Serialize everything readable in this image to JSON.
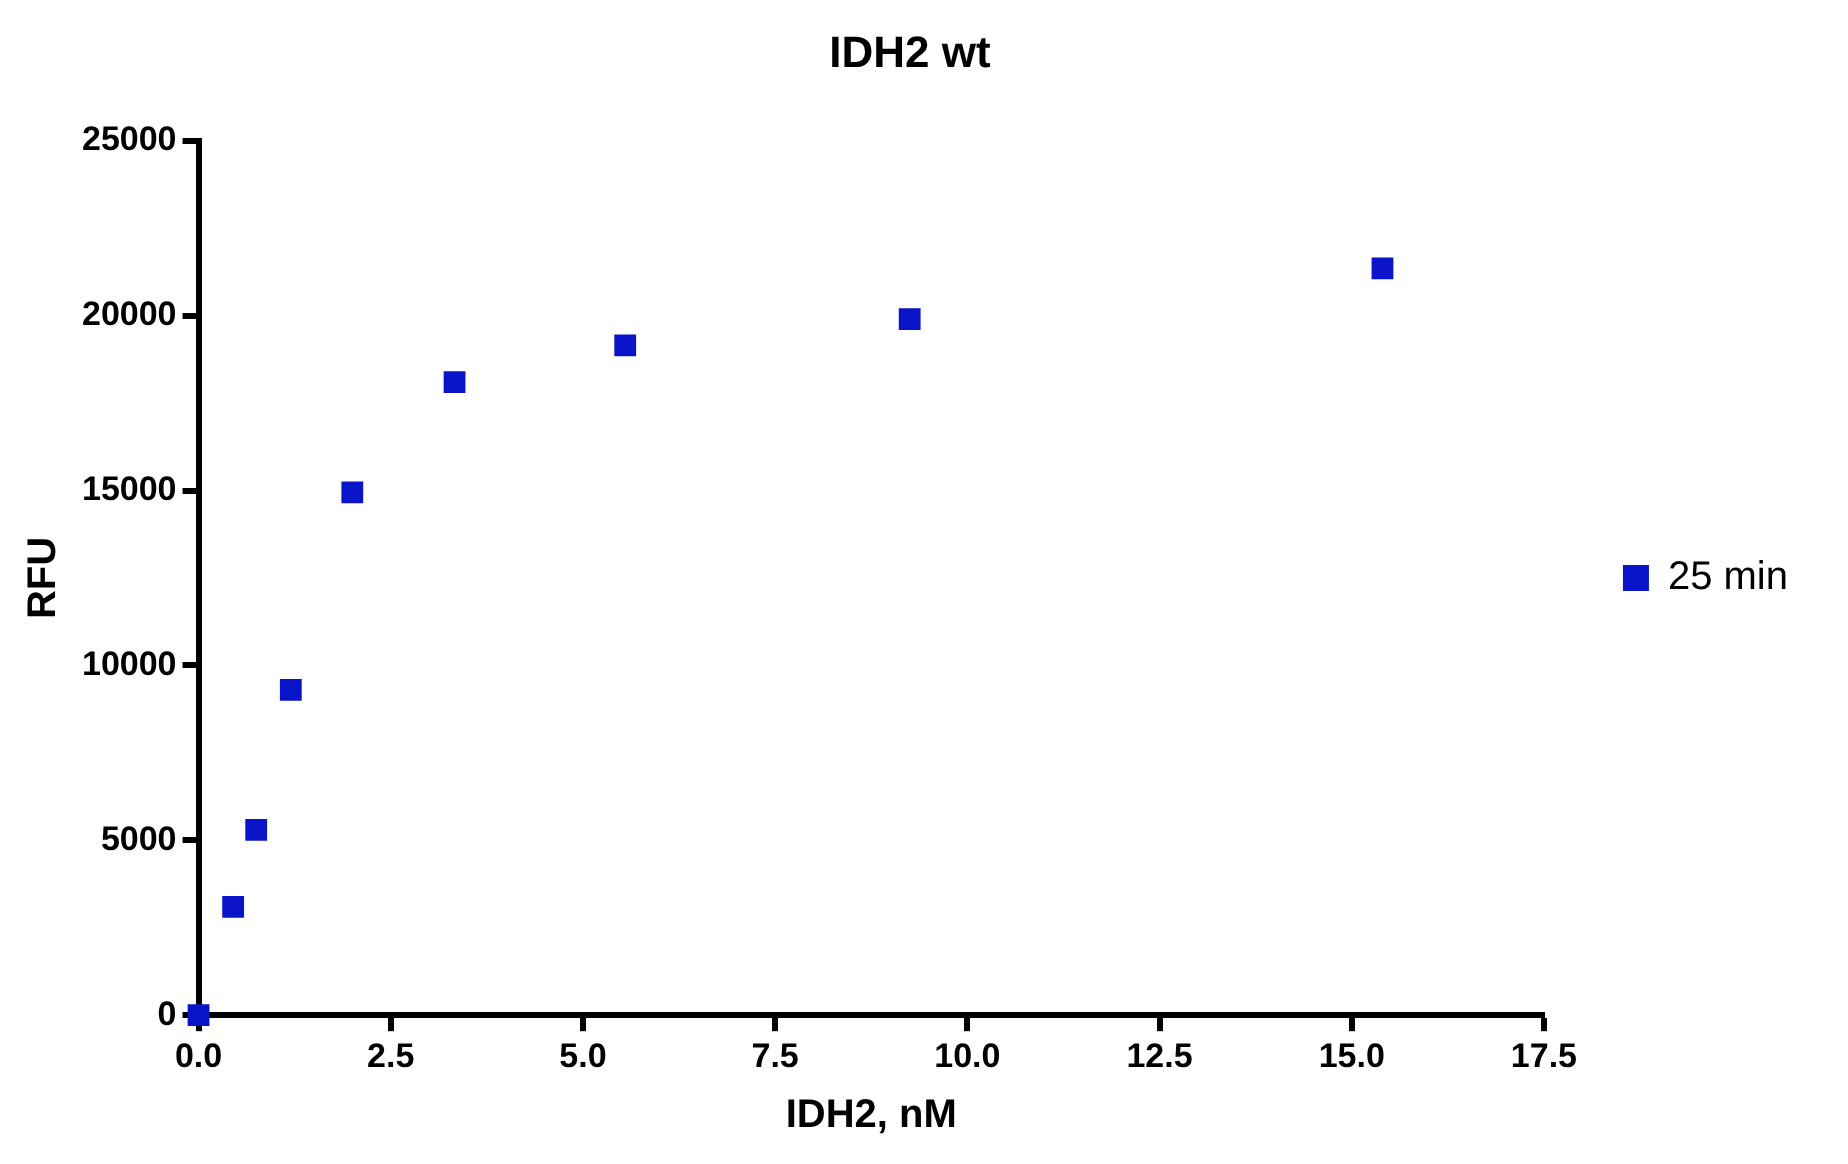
{
  "chart_data": {
    "type": "scatter",
    "title": "IDH2 wt",
    "xlabel": "IDH2, nM",
    "ylabel": "RFU",
    "x": [
      0,
      0.45,
      0.75,
      1.2,
      2,
      3.33,
      5.55,
      9.25,
      15.4
    ],
    "series": [
      {
        "name": "25 min",
        "color": "#0a14c8",
        "values": [
          0,
          3100,
          5300,
          9300,
          14950,
          18100,
          19150,
          19900,
          21350
        ]
      }
    ],
    "xlim": [
      0,
      17.5
    ],
    "xticks": [
      {
        "value": 0,
        "label": "0.0"
      },
      {
        "value": 2.5,
        "label": "2.5"
      },
      {
        "value": 5,
        "label": "5.0"
      },
      {
        "value": 7.5,
        "label": "7.5"
      },
      {
        "value": 10,
        "label": "10.0"
      },
      {
        "value": 12.5,
        "label": "12.5"
      },
      {
        "value": 15,
        "label": "15.0"
      },
      {
        "value": 17.5,
        "label": "17.5"
      }
    ],
    "ylim": [
      0,
      25000
    ],
    "yticks": [
      0,
      5000,
      10000,
      15000,
      20000,
      25000
    ],
    "legend": "right",
    "marker": "square"
  }
}
